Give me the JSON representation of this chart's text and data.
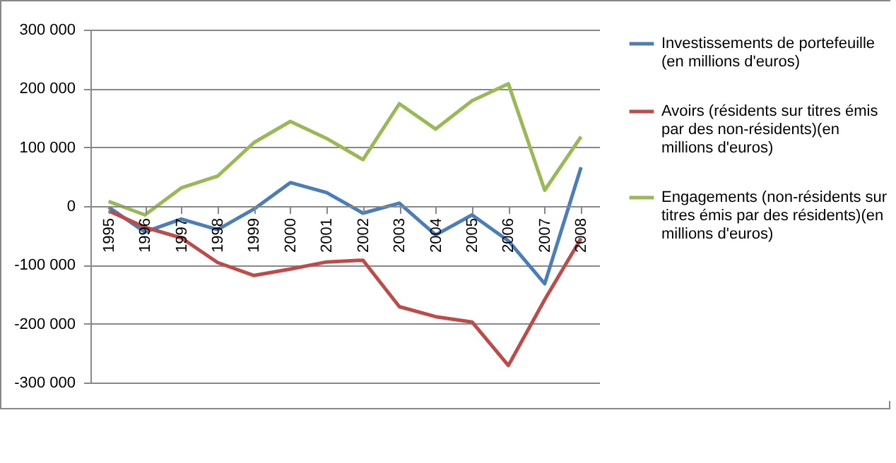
{
  "chart_data": {
    "type": "line",
    "categories": [
      "1995",
      "1996",
      "1997",
      "1998",
      "1999",
      "2000",
      "2001",
      "2002",
      "2003",
      "2004",
      "2005",
      "2006",
      "2007",
      "2008"
    ],
    "series": [
      {
        "name": "Investissements de portefeuille (en millions d'euros)",
        "color": "#4a7ebb",
        "values": [
          -2000,
          -44000,
          -22000,
          -40000,
          -5000,
          40000,
          23000,
          -12000,
          5000,
          -49000,
          -15000,
          -59000,
          -132000,
          66000
        ]
      },
      {
        "name": "Avoirs (résidents sur titres émis par des non-résidents)(en millions d'euros)",
        "color": "#be4b48",
        "values": [
          -8000,
          -36000,
          -54000,
          -96000,
          -118000,
          -107000,
          -95000,
          -92000,
          -171000,
          -188000,
          -197000,
          -271000,
          -159000,
          -55000
        ]
      },
      {
        "name": "Engagements (non-résidents sur titres émis par des résidents)(en millions d'euros)",
        "color": "#98b954",
        "values": [
          8000,
          -15000,
          31000,
          51000,
          108000,
          144000,
          115000,
          79000,
          174000,
          131000,
          179000,
          208000,
          27000,
          118000
        ]
      }
    ],
    "ylim": [
      -300000,
      300000
    ],
    "yticks": [
      {
        "value": -300000,
        "label": "-300 000"
      },
      {
        "value": -200000,
        "label": "-200 000"
      },
      {
        "value": -100000,
        "label": "-100 000"
      },
      {
        "value": 0,
        "label": "0"
      },
      {
        "value": 100000,
        "label": "100 000"
      },
      {
        "value": 200000,
        "label": "200 000"
      },
      {
        "value": 300000,
        "label": "300 000"
      }
    ],
    "grid": "y",
    "legend": "right",
    "marker": "none",
    "line_style": "solid"
  }
}
